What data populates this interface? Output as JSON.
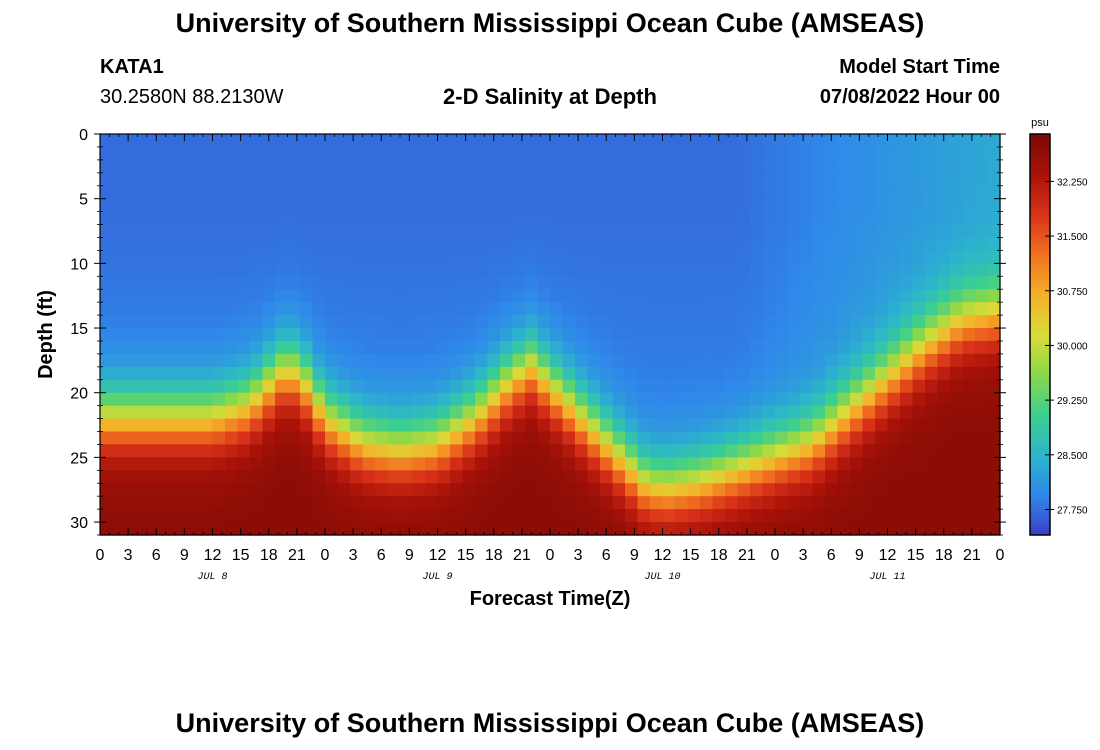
{
  "header": {
    "title": "University of Southern Mississippi Ocean Cube (AMSEAS)",
    "station_id": "KATA1",
    "coords": "30.2580N  88.2130W",
    "plot_title": "2-D Salinity at Depth",
    "start_label": "Model Start Time",
    "start_value": "07/08/2022 Hour 00"
  },
  "footer": {
    "title": "University of Southern Mississippi Ocean Cube (AMSEAS)"
  },
  "chart_data": {
    "type": "heatmap",
    "title": "2-D Salinity at Depth",
    "xlabel": "Forecast Time(Z)",
    "ylabel": "Depth (ft)",
    "xlim": [
      0,
      96
    ],
    "ylim": [
      0,
      31
    ],
    "x_tick_labels": [
      "0",
      "3",
      "6",
      "9",
      "12",
      "15",
      "18",
      "21",
      "0",
      "3",
      "6",
      "9",
      "12",
      "15",
      "18",
      "21",
      "0",
      "3",
      "6",
      "9",
      "12",
      "15",
      "18",
      "21",
      "0",
      "3",
      "6",
      "9",
      "12",
      "15",
      "18",
      "21",
      "0"
    ],
    "y_ticks": [
      0,
      5,
      10,
      15,
      20,
      25,
      30
    ],
    "day_labels": [
      {
        "label": "JUL 8",
        "hour": 12
      },
      {
        "label": "JUL 9",
        "hour": 36
      },
      {
        "label": "JUL 10",
        "hour": 60
      },
      {
        "label": "JUL 11",
        "hour": 84
      }
    ],
    "colorbar": {
      "unit": "psu",
      "range": [
        27.4,
        32.9
      ],
      "ticks": [
        "32.250",
        "31.500",
        "30.750",
        "30.000",
        "29.250",
        "28.500",
        "27.750"
      ],
      "colors": [
        "#3a3fc6",
        "#2f88ea",
        "#2cb6ca",
        "#3ccf8f",
        "#8ad84a",
        "#d9dc38",
        "#f5b02a",
        "#f07020",
        "#d9321a",
        "#a81208",
        "#7c0a05"
      ]
    },
    "halocline_profile": {
      "hours": [
        0,
        4,
        8,
        12,
        16,
        18,
        20,
        22,
        24,
        28,
        32,
        36,
        40,
        44,
        46,
        48,
        52,
        56,
        58,
        60,
        64,
        68,
        72,
        76,
        80,
        84,
        88,
        92,
        96
      ],
      "interface_depth_ft": [
        22,
        22,
        22,
        22,
        21,
        19.5,
        18,
        19.5,
        22,
        24,
        24.5,
        24,
        22,
        19,
        18,
        19.5,
        22.5,
        25.5,
        27,
        27.5,
        27,
        26,
        25,
        24,
        21.5,
        19,
        16.5,
        14.5,
        14
      ]
    },
    "salinity_params": {
      "surface_psu": 27.75,
      "bottom_psu": 32.7
    }
  }
}
